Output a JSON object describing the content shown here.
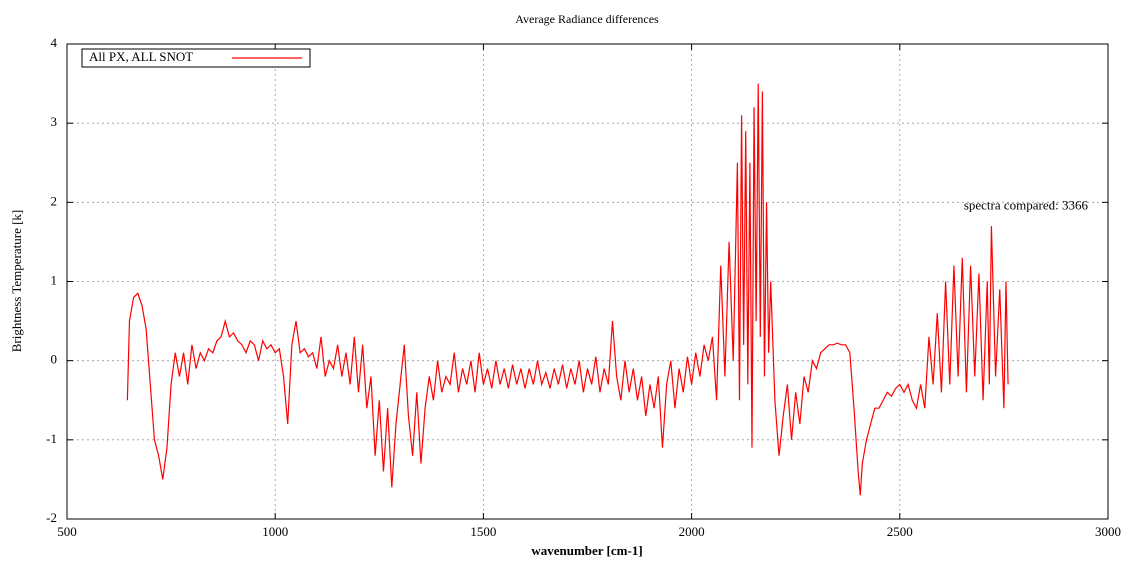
{
  "chart_data": {
    "type": "line",
    "title": "Average Radiance differences",
    "x_label": "wavenumber [cm-1]",
    "y_label": "Brightness Temperature [k]",
    "annotation": "spectra compared: 3366",
    "legend": "top-left",
    "grid": true,
    "xlim": [
      500,
      3000
    ],
    "xticks": [
      500,
      1000,
      1500,
      2000,
      2500,
      3000
    ],
    "ylim": [
      -2,
      4
    ],
    "yticks": [
      -2,
      -1,
      0,
      1,
      2,
      3,
      4
    ],
    "x": [
      645,
      650,
      660,
      670,
      680,
      690,
      700,
      710,
      720,
      730,
      740,
      750,
      760,
      770,
      780,
      790,
      800,
      810,
      820,
      830,
      840,
      850,
      860,
      870,
      880,
      890,
      900,
      910,
      920,
      930,
      940,
      950,
      960,
      970,
      980,
      990,
      1000,
      1010,
      1020,
      1030,
      1040,
      1050,
      1060,
      1070,
      1080,
      1090,
      1100,
      1110,
      1120,
      1130,
      1140,
      1150,
      1160,
      1170,
      1180,
      1190,
      1200,
      1210,
      1220,
      1230,
      1240,
      1250,
      1260,
      1270,
      1280,
      1290,
      1300,
      1310,
      1320,
      1330,
      1340,
      1350,
      1360,
      1370,
      1380,
      1390,
      1400,
      1410,
      1420,
      1430,
      1440,
      1450,
      1460,
      1470,
      1480,
      1490,
      1500,
      1510,
      1520,
      1530,
      1540,
      1550,
      1560,
      1570,
      1580,
      1590,
      1600,
      1610,
      1620,
      1630,
      1640,
      1650,
      1660,
      1670,
      1680,
      1690,
      1700,
      1710,
      1720,
      1730,
      1740,
      1750,
      1760,
      1770,
      1780,
      1790,
      1800,
      1810,
      1820,
      1830,
      1840,
      1850,
      1860,
      1870,
      1880,
      1890,
      1900,
      1910,
      1920,
      1930,
      1940,
      1950,
      1960,
      1970,
      1980,
      1990,
      2000,
      2010,
      2020,
      2030,
      2040,
      2050,
      2060,
      2070,
      2080,
      2090,
      2100,
      2110,
      2115,
      2120,
      2125,
      2130,
      2135,
      2140,
      2145,
      2150,
      2155,
      2160,
      2165,
      2170,
      2175,
      2180,
      2185,
      2190,
      2200,
      2210,
      2220,
      2230,
      2240,
      2250,
      2260,
      2270,
      2280,
      2290,
      2300,
      2310,
      2320,
      2330,
      2340,
      2350,
      2360,
      2370,
      2380,
      2390,
      2400,
      2405,
      2410,
      2420,
      2430,
      2440,
      2450,
      2460,
      2470,
      2480,
      2490,
      2500,
      2510,
      2520,
      2530,
      2540,
      2550,
      2560,
      2570,
      2580,
      2590,
      2600,
      2610,
      2620,
      2630,
      2640,
      2650,
      2660,
      2670,
      2680,
      2690,
      2700,
      2710,
      2715,
      2720,
      2730,
      2740,
      2750,
      2755,
      2760
    ],
    "series": [
      {
        "name": "All PX, ALL SNOT",
        "color": "#ff0000",
        "values": [
          -0.5,
          0.5,
          0.8,
          0.85,
          0.7,
          0.4,
          -0.3,
          -1.0,
          -1.2,
          -1.5,
          -1.1,
          -0.3,
          0.1,
          -0.2,
          0.1,
          -0.3,
          0.2,
          -0.1,
          0.1,
          0.0,
          0.15,
          0.1,
          0.25,
          0.3,
          0.5,
          0.3,
          0.35,
          0.25,
          0.2,
          0.1,
          0.25,
          0.2,
          0.0,
          0.25,
          0.15,
          0.2,
          0.1,
          0.15,
          -0.2,
          -0.8,
          0.2,
          0.5,
          0.1,
          0.15,
          0.05,
          0.1,
          -0.1,
          0.3,
          -0.2,
          0.0,
          -0.1,
          0.2,
          -0.2,
          0.1,
          -0.3,
          0.3,
          -0.4,
          0.2,
          -0.6,
          -0.2,
          -1.2,
          -0.5,
          -1.4,
          -0.6,
          -1.6,
          -0.8,
          -0.3,
          0.2,
          -0.7,
          -1.2,
          -0.4,
          -1.3,
          -0.6,
          -0.2,
          -0.5,
          0.0,
          -0.4,
          -0.2,
          -0.3,
          0.1,
          -0.4,
          -0.1,
          -0.3,
          0.0,
          -0.4,
          0.1,
          -0.3,
          -0.1,
          -0.35,
          0.0,
          -0.3,
          -0.1,
          -0.35,
          -0.05,
          -0.3,
          -0.1,
          -0.35,
          -0.1,
          -0.3,
          0.0,
          -0.3,
          -0.15,
          -0.35,
          -0.1,
          -0.3,
          -0.05,
          -0.35,
          -0.1,
          -0.3,
          0.0,
          -0.4,
          -0.1,
          -0.3,
          0.05,
          -0.4,
          -0.1,
          -0.3,
          0.5,
          -0.2,
          -0.5,
          0.0,
          -0.4,
          -0.1,
          -0.5,
          -0.2,
          -0.7,
          -0.3,
          -0.6,
          -0.2,
          -1.1,
          -0.3,
          0.0,
          -0.6,
          -0.1,
          -0.4,
          0.05,
          -0.3,
          0.1,
          -0.2,
          0.2,
          0.0,
          0.3,
          -0.5,
          1.2,
          -0.2,
          1.5,
          0.0,
          2.5,
          -0.5,
          3.1,
          0.2,
          2.9,
          -0.3,
          2.5,
          -1.1,
          3.2,
          0.5,
          3.5,
          0.3,
          3.4,
          -0.2,
          2.0,
          0.1,
          1.0,
          -0.5,
          -1.2,
          -0.7,
          -0.3,
          -1.0,
          -0.4,
          -0.8,
          -0.2,
          -0.4,
          0.0,
          -0.1,
          0.1,
          0.15,
          0.2,
          0.2,
          0.22,
          0.2,
          0.2,
          0.1,
          -0.6,
          -1.4,
          -1.7,
          -1.3,
          -1.0,
          -0.8,
          -0.6,
          -0.6,
          -0.5,
          -0.4,
          -0.45,
          -0.35,
          -0.3,
          -0.4,
          -0.3,
          -0.5,
          -0.6,
          -0.3,
          -0.6,
          0.3,
          -0.3,
          0.6,
          -0.4,
          1.0,
          -0.3,
          1.2,
          -0.2,
          1.3,
          -0.4,
          1.2,
          -0.2,
          1.1,
          -0.5,
          1.0,
          -0.3,
          1.7,
          -0.2,
          0.9,
          -0.6,
          1.0,
          -0.3
        ]
      }
    ]
  }
}
